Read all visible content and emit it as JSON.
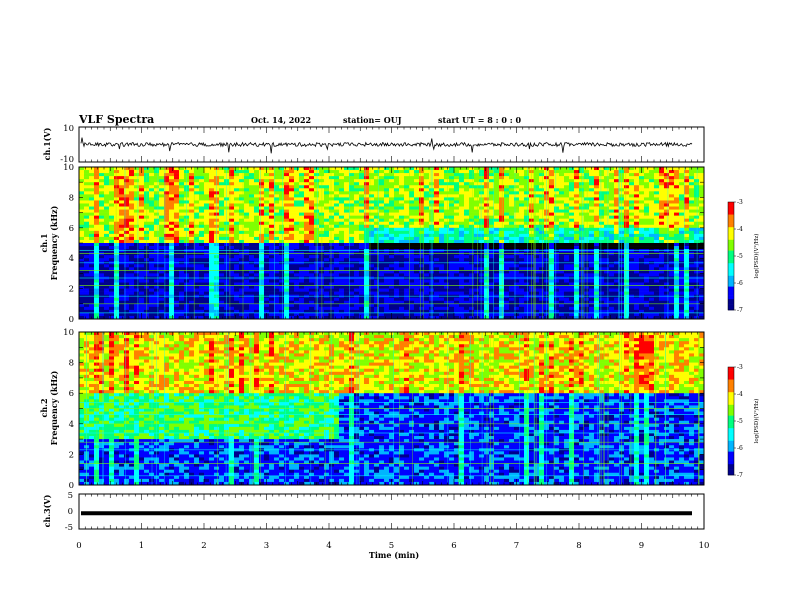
{
  "header": {
    "title": "VLF Spectra",
    "date": "Oct. 14, 2022",
    "station": "station= OUJ",
    "start_ut": "start  UT =   8 : 0  : 0"
  },
  "colors": {
    "spectrogram_map": [
      "#000000",
      "#00008c",
      "#0000ff",
      "#00b4ff",
      "#00ffff",
      "#00ff80",
      "#80ff00",
      "#ffff00",
      "#ff8000",
      "#ff0000",
      "#ffffff"
    ],
    "waveform": "#000000"
  },
  "chart_data": [
    {
      "type": "line",
      "name": "ch1-waveform",
      "ylabel": "ch.1(V)",
      "ylim": [
        -10,
        10
      ],
      "y_ticks": [
        "10",
        "-10"
      ],
      "xlim": [
        0,
        10
      ],
      "description_values": "noise signal around 0 V, amplitude about 1-2 V"
    },
    {
      "type": "heatmap",
      "name": "ch1-spectrogram",
      "ylabel": "ch.1\nFrequency (kHz)",
      "ylabel_line1": "ch.1",
      "ylabel_line2": "Frequency (kHz)",
      "ylim": [
        0,
        10
      ],
      "y_ticks": [
        "0",
        "2",
        "4",
        "6",
        "8",
        "10"
      ],
      "xlim": [
        0,
        10
      ],
      "colorbar": {
        "label": "log(PSD)(V²/Hz)",
        "range": [
          -7,
          -3
        ],
        "ticks": [
          "-3",
          "-4",
          "-5",
          "-6",
          "-7"
        ]
      }
    },
    {
      "type": "heatmap",
      "name": "ch2-spectrogram",
      "ylabel_line1": "ch.2",
      "ylabel_line2": "Frequency (kHz)",
      "ylim": [
        0,
        10
      ],
      "y_ticks": [
        "0",
        "2",
        "4",
        "6",
        "8",
        "10"
      ],
      "xlim": [
        0,
        10
      ],
      "colorbar": {
        "label": "log(PSD)(V²/Hz)",
        "range": [
          -7,
          -3
        ],
        "ticks": [
          "-3",
          "-4",
          "-5",
          "-6",
          "-7"
        ]
      }
    },
    {
      "type": "line",
      "name": "ch3-waveform",
      "ylabel": "ch.3(V)",
      "ylim": [
        -5,
        5
      ],
      "y_ticks": [
        "5",
        "0",
        "-5"
      ],
      "xlim": [
        0,
        10
      ],
      "constant_value": -0.5
    }
  ],
  "x_axis": {
    "label": "Time  (min)",
    "ticks": [
      "0",
      "1",
      "2",
      "3",
      "4",
      "5",
      "6",
      "7",
      "8",
      "9",
      "10"
    ],
    "range": [
      0,
      10
    ]
  }
}
